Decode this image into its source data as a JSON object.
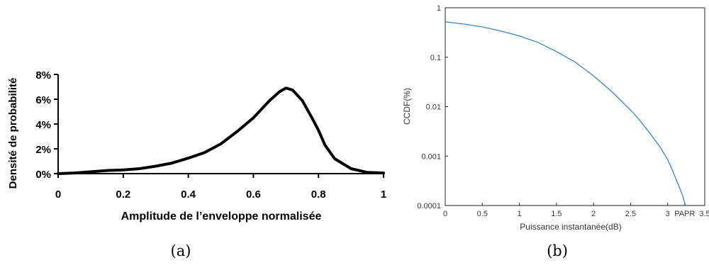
{
  "chart_data": [
    {
      "type": "line",
      "panel_label": "(a)",
      "xlabel": "Amplitude de l’enveloppe normalisée",
      "ylabel": "Densité de probabilité",
      "xlim": [
        0,
        1
      ],
      "ylim": [
        0,
        8
      ],
      "x_ticks": [
        {
          "v": 0,
          "label": "0"
        },
        {
          "v": 0.2,
          "label": "0.2"
        },
        {
          "v": 0.4,
          "label": "0.4"
        },
        {
          "v": 0.6,
          "label": "0.6"
        },
        {
          "v": 0.8,
          "label": "0.8"
        },
        {
          "v": 1,
          "label": "1"
        }
      ],
      "y_ticks": [
        {
          "v": 0,
          "label": "0%"
        },
        {
          "v": 2,
          "label": "2%"
        },
        {
          "v": 4,
          "label": "4%"
        },
        {
          "v": 6,
          "label": "6%"
        },
        {
          "v": 8,
          "label": "8%"
        }
      ],
      "grid": false,
      "color": "#000000",
      "x": [
        0,
        0.05,
        0.1,
        0.15,
        0.2,
        0.25,
        0.3,
        0.35,
        0.4,
        0.45,
        0.5,
        0.55,
        0.6,
        0.65,
        0.68,
        0.7,
        0.72,
        0.75,
        0.78,
        0.8,
        0.82,
        0.85,
        0.9,
        0.95,
        1.0
      ],
      "y": [
        0,
        0.05,
        0.15,
        0.25,
        0.3,
        0.4,
        0.6,
        0.85,
        1.25,
        1.7,
        2.4,
        3.4,
        4.5,
        5.9,
        6.6,
        6.9,
        6.75,
        5.9,
        4.5,
        3.5,
        2.3,
        1.2,
        0.4,
        0.1,
        0.05
      ]
    },
    {
      "type": "line",
      "panel_label": "(b)",
      "xlabel": "Puissance instantanée(dB)",
      "ylabel": "CCDF(%)",
      "xlim": [
        0,
        3.5
      ],
      "ylim": [
        0.0001,
        1
      ],
      "y_scale": "log",
      "x_ticks": [
        {
          "v": 0,
          "label": "0"
        },
        {
          "v": 0.5,
          "label": "0.5"
        },
        {
          "v": 1,
          "label": "1"
        },
        {
          "v": 1.5,
          "label": "1.5"
        },
        {
          "v": 2,
          "label": "2"
        },
        {
          "v": 2.5,
          "label": "2.5"
        },
        {
          "v": 3,
          "label": "3"
        },
        {
          "v": 3.23,
          "label": "PAPR"
        },
        {
          "v": 3.5,
          "label": "3.5"
        }
      ],
      "y_ticks": [
        {
          "v": 1,
          "label": "1"
        },
        {
          "v": 0.1,
          "label": "0.1"
        },
        {
          "v": 0.01,
          "label": "0.01"
        },
        {
          "v": 0.001,
          "label": "0.001"
        },
        {
          "v": 0.0001,
          "label": "0.0001"
        }
      ],
      "grid": false,
      "color": "#3b7fc4",
      "x": [
        0,
        0.25,
        0.5,
        0.75,
        1.0,
        1.25,
        1.5,
        1.75,
        2.0,
        2.25,
        2.5,
        2.6,
        2.7,
        2.8,
        2.9,
        3.0,
        3.05,
        3.1,
        3.15,
        3.2,
        3.24
      ],
      "y": [
        0.52,
        0.47,
        0.41,
        0.34,
        0.27,
        0.2,
        0.13,
        0.08,
        0.042,
        0.02,
        0.0085,
        0.0058,
        0.0038,
        0.0024,
        0.0015,
        0.00085,
        0.00058,
        0.00038,
        0.00025,
        0.00016,
        0.0001
      ]
    }
  ]
}
